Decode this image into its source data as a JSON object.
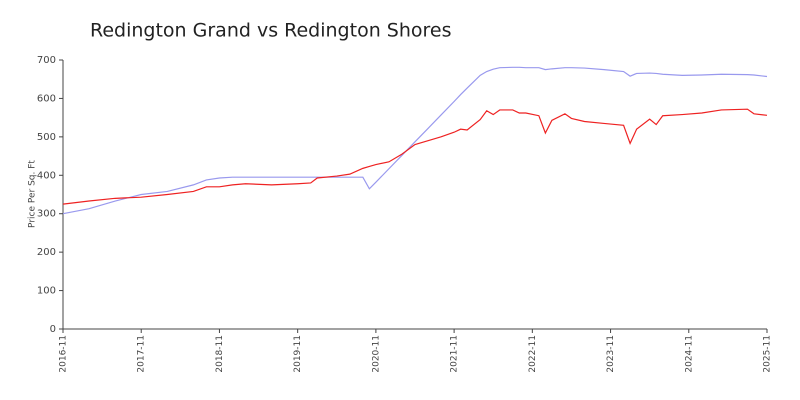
{
  "chart_data": {
    "type": "line",
    "title": "Redington Grand vs Redington Shores",
    "y_label": "Price Per Sq. Ft",
    "x": [
      "2016-11",
      "2017-03",
      "2017-07",
      "2017-11",
      "2018-03",
      "2018-07",
      "2018-09",
      "2018-11",
      "2019-01",
      "2019-03",
      "2019-07",
      "2019-11",
      "2020-01",
      "2020-02",
      "2020-05",
      "2020-07",
      "2020-09",
      "2020-10",
      "2020-11",
      "2021-01",
      "2021-03",
      "2021-05",
      "2021-07",
      "2021-09",
      "2021-11",
      "2021-12",
      "2022-01",
      "2022-03",
      "2022-04",
      "2022-05",
      "2022-06",
      "2022-08",
      "2022-09",
      "2022-10",
      "2022-12",
      "2023-01",
      "2023-02",
      "2023-04",
      "2023-05",
      "2023-07",
      "2023-10",
      "2024-01",
      "2024-02",
      "2024-03",
      "2024-05",
      "2024-06",
      "2024-07",
      "2024-10",
      "2025-01",
      "2025-04",
      "2025-08",
      "2025-09",
      "2025-11"
    ],
    "series": [
      {
        "color": "#9999ee",
        "values": [
          300,
          313,
          333,
          350,
          358,
          375,
          388,
          393,
          395,
          395,
          395,
          395,
          395,
          395,
          395,
          395,
          395,
          365,
          382,
          417,
          452,
          487,
          522,
          557,
          592,
          610,
          627,
          660,
          670,
          676,
          680,
          681,
          681,
          680,
          680,
          675,
          677,
          680,
          680,
          679,
          675,
          670,
          658,
          665,
          666,
          665,
          663,
          660,
          661,
          663,
          662,
          661,
          657
        ]
      },
      {
        "color": "#ee2222",
        "values": [
          325,
          333,
          340,
          343,
          350,
          358,
          370,
          370,
          375,
          378,
          375,
          378,
          380,
          393,
          398,
          403,
          418,
          423,
          428,
          435,
          455,
          480,
          490,
          500,
          512,
          520,
          518,
          545,
          568,
          558,
          570,
          570,
          562,
          562,
          555,
          510,
          543,
          560,
          548,
          540,
          535,
          530,
          483,
          520,
          546,
          532,
          555,
          558,
          562,
          570,
          572,
          560,
          556
        ]
      }
    ],
    "xlim": [
      "2016-11",
      "2025-11"
    ],
    "xticks": [
      "2016-11",
      "2017-11",
      "2018-11",
      "2019-11",
      "2020-11",
      "2021-11",
      "2022-11",
      "2023-11",
      "2024-11",
      "2025-11"
    ],
    "ylim": [
      0,
      700
    ],
    "yticks": [
      0,
      100,
      200,
      300,
      400,
      500,
      600,
      700
    ],
    "grid": false
  }
}
